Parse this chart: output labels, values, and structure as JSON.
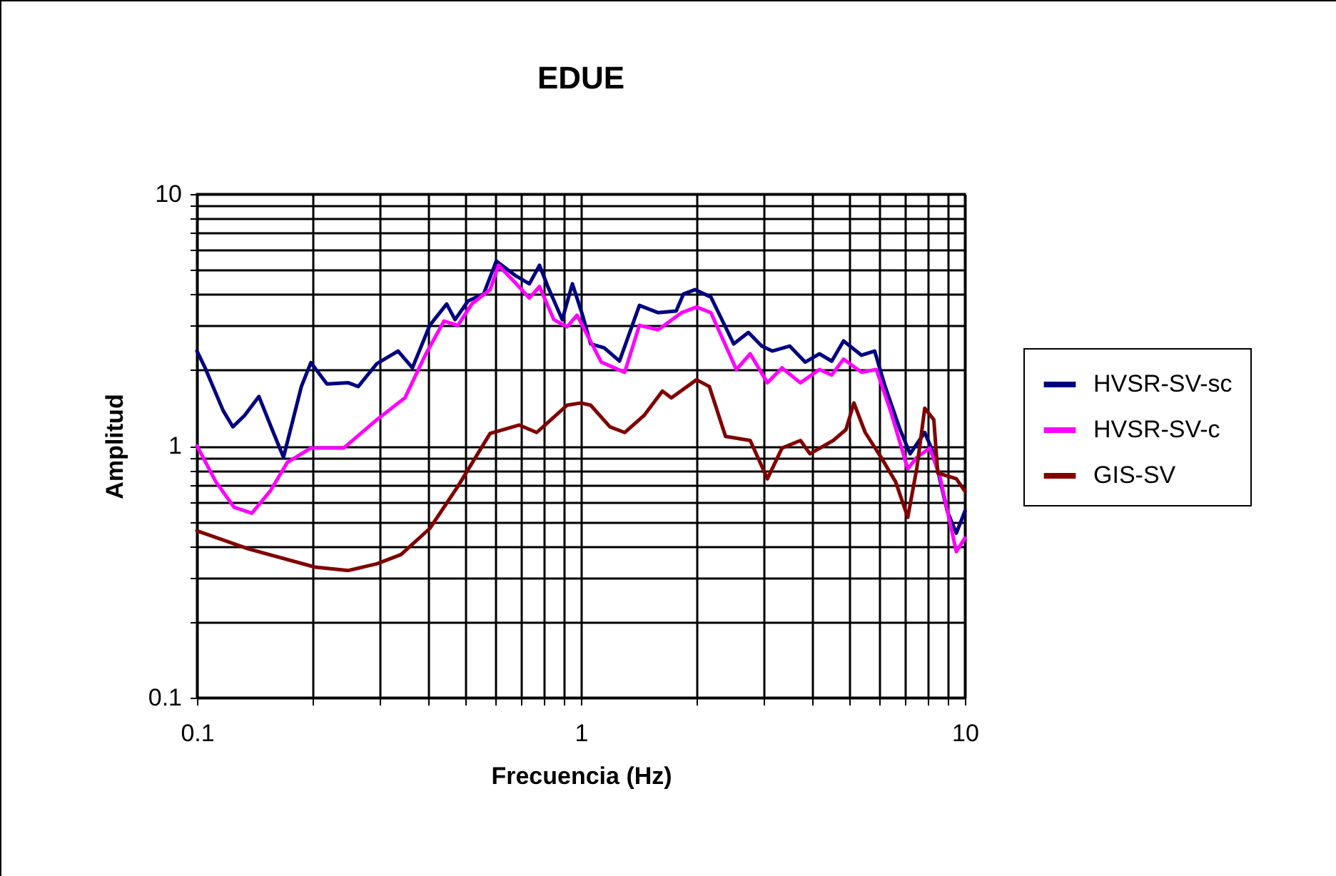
{
  "chart_data": {
    "type": "line",
    "title": "EDUE",
    "xlabel": "Frecuencia (Hz)",
    "ylabel": "Amplitud",
    "log": "xy",
    "grid": true,
    "legend": "right",
    "line_style": "solid",
    "marker": "none",
    "xlim": [
      0.1,
      10
    ],
    "ylim": [
      0.1,
      10
    ],
    "xticks": [
      0.1,
      {
        "value": 0.2,
        "label": null
      },
      {
        "value": 0.3,
        "label": null
      },
      {
        "value": 0.4,
        "label": null
      },
      {
        "value": 0.5,
        "label": null
      },
      {
        "value": 0.6,
        "label": null
      },
      {
        "value": 0.7,
        "label": null
      },
      {
        "value": 0.8,
        "label": null
      },
      {
        "value": 0.9,
        "label": null
      },
      1,
      {
        "value": 2,
        "label": null
      },
      {
        "value": 3,
        "label": null
      },
      {
        "value": 4,
        "label": null
      },
      {
        "value": 5,
        "label": null
      },
      {
        "value": 6,
        "label": null
      },
      {
        "value": 7,
        "label": null
      },
      {
        "value": 8,
        "label": null
      },
      {
        "value": 9,
        "label": null
      },
      10
    ],
    "yticks": [
      0.1,
      {
        "value": 0.2,
        "label": null
      },
      {
        "value": 0.3,
        "label": null
      },
      {
        "value": 0.4,
        "label": null
      },
      {
        "value": 0.5,
        "label": null
      },
      {
        "value": 0.6,
        "label": null
      },
      {
        "value": 0.7,
        "label": null
      },
      {
        "value": 0.8,
        "label": null
      },
      {
        "value": 0.9,
        "label": null
      },
      1,
      {
        "value": 2,
        "label": null
      },
      {
        "value": 3,
        "label": null
      },
      {
        "value": 4,
        "label": null
      },
      {
        "value": 5,
        "label": null
      },
      {
        "value": 6,
        "label": null
      },
      {
        "value": 7,
        "label": null
      },
      {
        "value": 8,
        "label": null
      },
      {
        "value": 9,
        "label": null
      },
      10
    ],
    "series": [
      {
        "name": "HVSR-SV-sc",
        "color": "#000080",
        "x": [
          0.1,
          0.105,
          0.117,
          0.124,
          0.133,
          0.145,
          0.157,
          0.168,
          0.187,
          0.198,
          0.218,
          0.248,
          0.263,
          0.294,
          0.334,
          0.364,
          0.404,
          0.447,
          0.47,
          0.508,
          0.558,
          0.602,
          0.673,
          0.734,
          0.78,
          0.82,
          0.894,
          0.95,
          1.01,
          1.06,
          1.15,
          1.26,
          1.42,
          1.59,
          1.77,
          1.85,
          1.98,
          2.18,
          2.5,
          2.73,
          2.96,
          3.15,
          3.5,
          3.84,
          4.18,
          4.5,
          4.83,
          5.38,
          5.82,
          6.2,
          6.78,
          7.2,
          7.86,
          8.3,
          9.0,
          9.5,
          10
        ],
        "values": [
          2.38,
          2.04,
          1.38,
          1.19,
          1.32,
          1.57,
          1.16,
          0.9,
          1.72,
          2.14,
          1.76,
          1.78,
          1.72,
          2.12,
          2.38,
          2.04,
          3.01,
          3.66,
          3.17,
          3.76,
          4.01,
          5.42,
          4.76,
          4.4,
          5.21,
          4.29,
          3.17,
          4.4,
          3.3,
          2.54,
          2.45,
          2.17,
          3.61,
          3.38,
          3.43,
          4.01,
          4.17,
          3.9,
          2.54,
          2.82,
          2.49,
          2.38,
          2.49,
          2.15,
          2.32,
          2.17,
          2.61,
          2.29,
          2.38,
          1.72,
          1.16,
          0.93,
          1.13,
          0.93,
          0.55,
          0.45,
          0.55
        ]
      },
      {
        "name": "HVSR-SV-c",
        "color": "#ff00ff",
        "x": [
          0.1,
          0.112,
          0.125,
          0.139,
          0.155,
          0.172,
          0.198,
          0.241,
          0.294,
          0.348,
          0.393,
          0.44,
          0.478,
          0.52,
          0.58,
          0.61,
          0.673,
          0.734,
          0.78,
          0.85,
          0.92,
          0.977,
          1.13,
          1.3,
          1.42,
          1.59,
          1.83,
          2.0,
          2.18,
          2.54,
          2.76,
          3.06,
          3.34,
          3.73,
          4.18,
          4.5,
          4.83,
          5.38,
          5.88,
          6.4,
          7.1,
          7.5,
          8.1,
          8.6,
          9.5,
          10
        ],
        "values": [
          1.0,
          0.72,
          0.57,
          0.54,
          0.66,
          0.86,
          0.98,
          0.98,
          1.27,
          1.55,
          2.29,
          3.13,
          3.01,
          3.66,
          4.17,
          5.21,
          4.46,
          3.86,
          4.29,
          3.17,
          2.97,
          3.3,
          2.15,
          1.96,
          3.01,
          2.89,
          3.38,
          3.56,
          3.38,
          2.01,
          2.32,
          1.78,
          2.04,
          1.78,
          2.01,
          1.91,
          2.21,
          1.96,
          2.01,
          1.38,
          0.81,
          0.9,
          0.98,
          0.76,
          0.38,
          0.43
        ]
      },
      {
        "name": "GIS-SV",
        "color": "#800000",
        "x": [
          0.1,
          0.136,
          0.203,
          0.248,
          0.294,
          0.34,
          0.404,
          0.478,
          0.58,
          0.69,
          0.767,
          0.92,
          1.0,
          1.06,
          1.19,
          1.3,
          1.46,
          1.63,
          1.72,
          2.0,
          2.16,
          2.38,
          2.76,
          3.06,
          3.34,
          3.73,
          3.95,
          4.54,
          4.9,
          5.14,
          5.5,
          6.05,
          6.6,
          7.1,
          7.5,
          7.86,
          8.3,
          8.5,
          9.5,
          10
        ],
        "values": [
          0.46,
          0.39,
          0.33,
          0.32,
          0.34,
          0.37,
          0.47,
          0.69,
          1.12,
          1.21,
          1.13,
          1.45,
          1.48,
          1.45,
          1.19,
          1.13,
          1.32,
          1.65,
          1.55,
          1.83,
          1.72,
          1.09,
          1.05,
          0.74,
          0.98,
          1.05,
          0.93,
          1.05,
          1.16,
          1.48,
          1.13,
          0.9,
          0.72,
          0.52,
          0.82,
          1.41,
          1.27,
          0.78,
          0.74,
          0.66
        ]
      }
    ]
  }
}
